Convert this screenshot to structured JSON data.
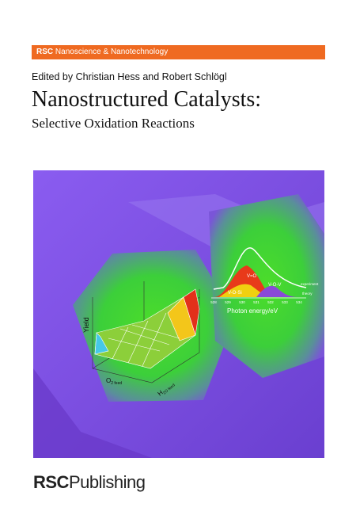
{
  "series": {
    "brand": "RSC",
    "name": "Nanoscience & Nanotechnology"
  },
  "editors": "Edited by Christian Hess and Robert Schlögl",
  "title": "Nanostructured Catalysts:",
  "subtitle": "Selective Oxidation Reactions",
  "plot_left": {
    "y_label": "Yield",
    "x_label": {
      "main": "O",
      "sub": "2 feed"
    },
    "z_label": {
      "main": "H",
      "sub": "2O feed"
    }
  },
  "plot_right": {
    "peaks": [
      "V=O",
      "V-O-V",
      "V-O-Si"
    ],
    "legend": [
      "experiment",
      "theory"
    ],
    "ticks": [
      528,
      529,
      530,
      531,
      532,
      533,
      534
    ],
    "x_label": "Photon energy/eV"
  },
  "publisher": {
    "brand": "RSC",
    "name": "Publishing"
  }
}
